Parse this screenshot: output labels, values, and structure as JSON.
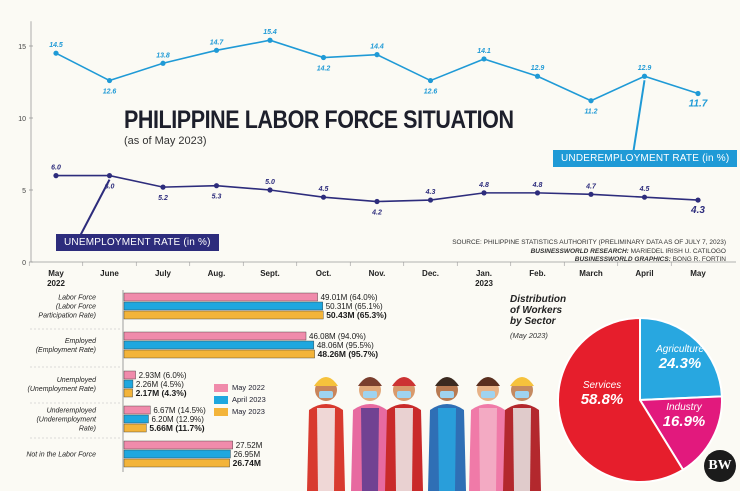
{
  "header": {
    "title": "PHILIPPINE LABOR FORCE SITUATION",
    "subtitle": "(as of May 2023)"
  },
  "source": {
    "line1": "SOURCE: PHILIPPINE STATISTICS AUTHORITY (PRELIMINARY DATA AS OF JULY 7, 2023)",
    "research_label": "BUSINESSWORLD RESEARCH:",
    "research_name": "MARIEDEL IRISH U. CATILOGO",
    "graphics_label": "BUSINESSWORLD GRAPHICS:",
    "graphics_name": "BONG R. FORTIN"
  },
  "logo_text": "BW",
  "colors": {
    "underemployment": "#1f9ad6",
    "unemployment": "#2d2c7c",
    "may2022": "#f08bab",
    "april2023": "#1ea7df",
    "may2023": "#f3b43a",
    "services": "#e61e2c",
    "agriculture": "#28a7e0",
    "industry": "#e2197d",
    "axis": "#999999"
  },
  "chart_data": [
    {
      "type": "line",
      "x": [
        "May 2022",
        "June",
        "July",
        "Aug.",
        "Sept.",
        "Oct.",
        "Nov.",
        "Dec.",
        "Jan. 2023",
        "Feb.",
        "March",
        "April",
        "May"
      ],
      "x_tick_labels": [
        {
          "line1": "May",
          "line2": "2022"
        },
        {
          "line1": "June",
          "line2": ""
        },
        {
          "line1": "July",
          "line2": ""
        },
        {
          "line1": "Aug.",
          "line2": ""
        },
        {
          "line1": "Sept.",
          "line2": ""
        },
        {
          "line1": "Oct.",
          "line2": ""
        },
        {
          "line1": "Nov.",
          "line2": ""
        },
        {
          "line1": "Dec.",
          "line2": ""
        },
        {
          "line1": "Jan.",
          "line2": "2023"
        },
        {
          "line1": "Feb.",
          "line2": ""
        },
        {
          "line1": "March",
          "line2": ""
        },
        {
          "line1": "April",
          "line2": ""
        },
        {
          "line1": "May",
          "line2": ""
        }
      ],
      "y_ticks": [
        "0",
        "5",
        "10",
        "15"
      ],
      "ylim": [
        0,
        17
      ],
      "series": [
        {
          "name": "UNDEREMPLOYMENT RATE (in %)",
          "values": [
            14.5,
            12.6,
            13.8,
            14.7,
            15.4,
            14.2,
            14.4,
            12.6,
            14.1,
            12.9,
            11.2,
            12.9,
            11.7
          ],
          "labels": [
            "14.5",
            "12.6",
            "13.8",
            "14.7",
            "15.4",
            "14.2",
            "14.4",
            "12.6",
            "14.1",
            "12.9",
            "11.2",
            "12.9",
            "11.7"
          ]
        },
        {
          "name": "UNEMPLOYMENT RATE (in %)",
          "values": [
            6.0,
            6.0,
            5.2,
            5.3,
            5.0,
            4.5,
            4.2,
            4.3,
            4.8,
            4.8,
            4.7,
            4.5,
            4.3
          ],
          "labels": [
            "6.0",
            "6.0",
            "5.2",
            "5.3",
            "5.0",
            "4.5",
            "4.2",
            "4.3",
            "4.8",
            "4.8",
            "4.7",
            "4.5",
            "4.3"
          ]
        }
      ]
    },
    {
      "type": "bar",
      "orientation": "horizontal",
      "categories": [
        {
          "label_lines": [
            "Labor Force",
            "(Labor Force",
            "Participation Rate)"
          ]
        },
        {
          "label_lines": [
            "Employed",
            "(Employment Rate)"
          ]
        },
        {
          "label_lines": [
            "Unemployed",
            "(Unemployment Rate)"
          ]
        },
        {
          "label_lines": [
            "Underemployed",
            "(Underemployment",
            "Rate)"
          ]
        },
        {
          "label_lines": [
            "Not in the Labor Force"
          ]
        }
      ],
      "series": [
        {
          "name": "May 2022",
          "values": [
            49.01,
            46.08,
            2.93,
            6.67,
            27.52
          ],
          "labels": [
            "49.01M (64.0%)",
            "46.08M (94.0%)",
            "2.93M (6.0%)",
            "6.67M (14.5%)",
            "27.52M"
          ]
        },
        {
          "name": "April 2023",
          "values": [
            50.31,
            48.06,
            2.26,
            6.2,
            26.95
          ],
          "labels": [
            "50.31M (65.1%)",
            "48.06M (95.5%)",
            "2.26M (4.5%)",
            "6.20M (12.9%)",
            "26.95M"
          ]
        },
        {
          "name": "May 2023",
          "values": [
            50.43,
            48.26,
            2.17,
            5.66,
            26.74
          ],
          "labels": [
            "50.43M (65.3%)",
            "48.26M (95.7%)",
            "2.17M (4.3%)",
            "5.66M (11.7%)",
            "26.74M"
          ]
        }
      ],
      "unit": "M",
      "legend_placement": "center-right"
    },
    {
      "type": "pie",
      "title_lines": [
        "Distribution",
        "of Workers",
        "by Sector"
      ],
      "subtitle": "(May 2023)",
      "slices": [
        {
          "name": "Services",
          "value": 58.8,
          "label": "58.8%"
        },
        {
          "name": "Agriculture",
          "value": 24.3,
          "label": "24.3%"
        },
        {
          "name": "Industry",
          "value": 16.9,
          "label": "16.9%"
        }
      ]
    }
  ]
}
